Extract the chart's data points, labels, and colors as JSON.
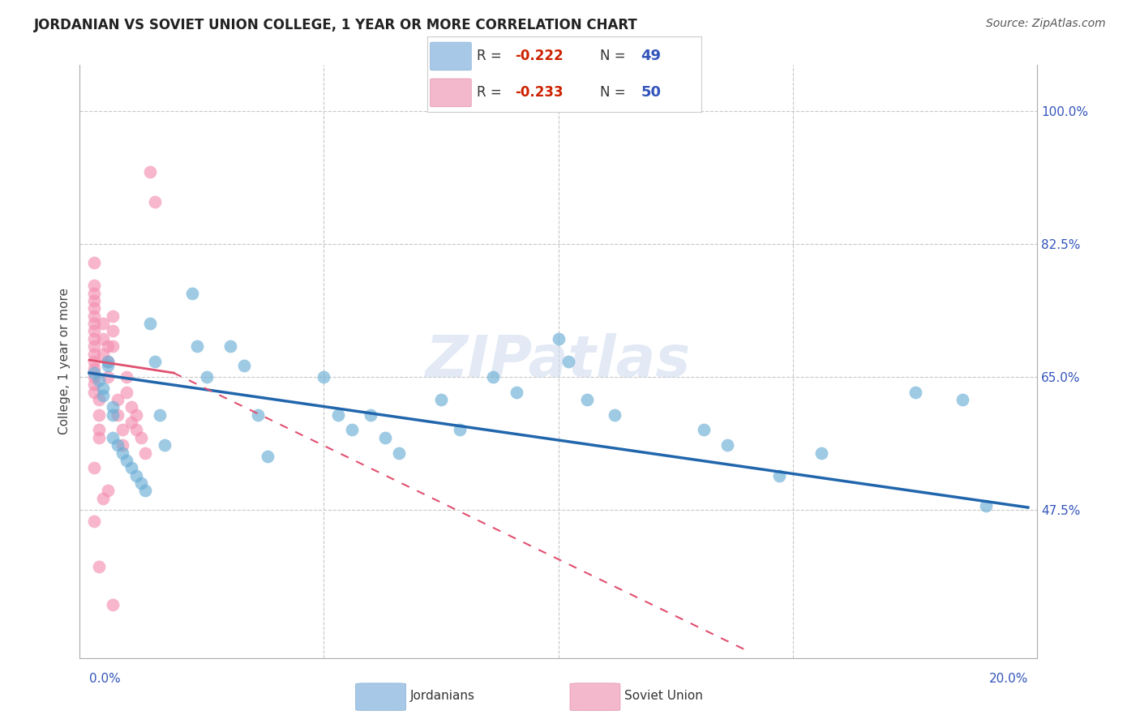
{
  "title": "JORDANIAN VS SOVIET UNION COLLEGE, 1 YEAR OR MORE CORRELATION CHART",
  "source": "Source: ZipAtlas.com",
  "ylabel": "College, 1 year or more",
  "ytick_labels": [
    "100.0%",
    "82.5%",
    "65.0%",
    "47.5%"
  ],
  "ytick_values": [
    1.0,
    0.825,
    0.65,
    0.475
  ],
  "xmin": 0.0,
  "xmax": 0.2,
  "ymin": 0.28,
  "ymax": 1.06,
  "blue_color": "#6baed6",
  "pink_color": "#f48fb1",
  "blue_line_color": "#2166ac",
  "pink_line_color": "#e05070",
  "watermark": "ZIPatlas",
  "blue_trendline": [
    0.0,
    0.655,
    0.2,
    0.478
  ],
  "pink_solid": [
    0.0,
    0.672,
    0.018,
    0.655
  ],
  "pink_dashed": [
    0.018,
    0.655,
    0.14,
    0.29
  ],
  "jordanians_x": [
    0.001,
    0.002,
    0.003,
    0.003,
    0.004,
    0.004,
    0.005,
    0.005,
    0.013,
    0.014,
    0.015,
    0.016,
    0.022,
    0.023,
    0.025,
    0.03,
    0.033,
    0.036,
    0.038,
    0.05,
    0.053,
    0.056,
    0.06,
    0.063,
    0.066,
    0.075,
    0.079,
    0.086,
    0.091,
    0.1,
    0.102,
    0.106,
    0.112,
    0.131,
    0.136,
    0.147,
    0.156,
    0.176,
    0.186,
    0.191,
    0.005,
    0.006,
    0.007,
    0.008,
    0.009,
    0.01,
    0.011,
    0.012
  ],
  "jordanians_y": [
    0.655,
    0.645,
    0.635,
    0.625,
    0.665,
    0.67,
    0.61,
    0.6,
    0.72,
    0.67,
    0.6,
    0.56,
    0.76,
    0.69,
    0.65,
    0.69,
    0.665,
    0.6,
    0.545,
    0.65,
    0.6,
    0.58,
    0.6,
    0.57,
    0.55,
    0.62,
    0.58,
    0.65,
    0.63,
    0.7,
    0.67,
    0.62,
    0.6,
    0.58,
    0.56,
    0.52,
    0.55,
    0.63,
    0.62,
    0.48,
    0.57,
    0.56,
    0.55,
    0.54,
    0.53,
    0.52,
    0.51,
    0.5
  ],
  "soviet_x": [
    0.001,
    0.001,
    0.001,
    0.001,
    0.001,
    0.001,
    0.001,
    0.001,
    0.001,
    0.001,
    0.001,
    0.001,
    0.001,
    0.001,
    0.001,
    0.001,
    0.002,
    0.002,
    0.002,
    0.002,
    0.003,
    0.003,
    0.003,
    0.004,
    0.004,
    0.004,
    0.005,
    0.005,
    0.005,
    0.006,
    0.006,
    0.007,
    0.007,
    0.008,
    0.008,
    0.009,
    0.009,
    0.01,
    0.01,
    0.011,
    0.012,
    0.013,
    0.014,
    0.001,
    0.001,
    0.003,
    0.004,
    0.005,
    0.002
  ],
  "soviet_y": [
    0.7,
    0.69,
    0.68,
    0.67,
    0.66,
    0.65,
    0.64,
    0.63,
    0.72,
    0.71,
    0.75,
    0.74,
    0.73,
    0.76,
    0.77,
    0.8,
    0.62,
    0.6,
    0.58,
    0.57,
    0.72,
    0.7,
    0.68,
    0.69,
    0.67,
    0.65,
    0.73,
    0.71,
    0.69,
    0.62,
    0.6,
    0.58,
    0.56,
    0.65,
    0.63,
    0.61,
    0.59,
    0.6,
    0.58,
    0.57,
    0.55,
    0.92,
    0.88,
    0.53,
    0.46,
    0.49,
    0.5,
    0.35,
    0.4
  ]
}
